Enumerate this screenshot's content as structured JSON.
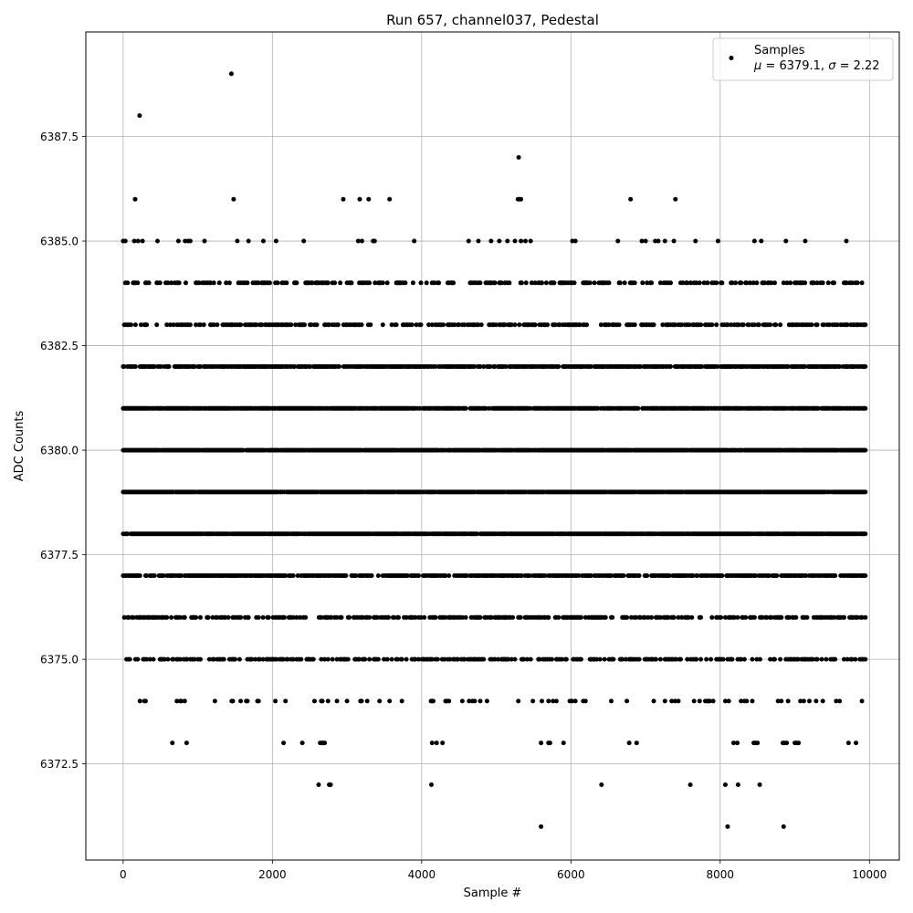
{
  "chart_data": {
    "type": "scatter",
    "title": "Run 657, channel037, Pedestal",
    "xlabel": "Sample #",
    "ylabel": "ADC Counts",
    "xlim": [
      -500,
      10400
    ],
    "ylim": [
      6370.2,
      6390.0
    ],
    "x_ticks": [
      0,
      2000,
      4000,
      6000,
      8000,
      10000
    ],
    "x_tick_labels": [
      "0",
      "2000",
      "4000",
      "6000",
      "8000",
      "10000"
    ],
    "y_ticks": [
      6372.5,
      6375.0,
      6377.5,
      6380.0,
      6382.5,
      6385.0,
      6387.5
    ],
    "y_tick_labels": [
      "6372.5",
      "6375.0",
      "6377.5",
      "6380.0",
      "6382.5",
      "6385.0",
      "6387.5"
    ],
    "grid": true,
    "legend_position": "top-right",
    "series": [
      {
        "name": "Samples",
        "color": "#000000",
        "note": "$\\mu$ = 6379.1, $\\sigma$ = 2.22",
        "x_range": [
          0,
          9950
        ],
        "levels": [
          {
            "y": 6371,
            "x": [
              5600,
              8100,
              8850
            ]
          },
          {
            "y": 6372,
            "x": [
              2620,
              2760,
              2780,
              4130,
              6410,
              7600,
              8070,
              8240,
              8530
            ]
          },
          {
            "y": 6373,
            "x": [
              660,
              850,
              2150,
              2400,
              2640,
              2660,
              2680,
              2700,
              4140,
              4200,
              4280,
              5600,
              5700,
              5720,
              5900,
              6780,
              6880,
              8180,
              8230,
              8450,
              8470,
              8500,
              8840,
              8860,
              8890,
              9000,
              9020,
              9050,
              9720,
              9820
            ]
          },
          {
            "y": 6389,
            "x": [
              1450
            ]
          },
          {
            "y": 6388,
            "x": [
              220
            ]
          },
          {
            "y": 6387,
            "x": [
              5300
            ]
          },
          {
            "y": 6386,
            "x": [
              160,
              1480,
              2950,
              3170,
              3290,
              3570,
              5290,
              5310,
              5330,
              6800,
              7400
            ]
          },
          {
            "y": 6385,
            "x": [
              0,
              30,
              150,
              200,
              260,
              460,
              740,
              830,
              870,
              900,
              1090,
              1530,
              1680,
              1880,
              2050,
              2420,
              3150,
              3200,
              3350,
              3370,
              3900,
              4630,
              4760,
              4930,
              5040,
              5150,
              5250,
              5330,
              5390,
              5460,
              6020,
              6060,
              6630,
              6950,
              7000,
              7130,
              7170,
              7260,
              7380,
              7670,
              7970,
              8460,
              8550,
              8880,
              9140,
              9690
            ]
          }
        ],
        "dense_levels": [
          {
            "y": 6374,
            "density": 0.12
          },
          {
            "y": 6375,
            "density": 0.42
          },
          {
            "y": 6376,
            "density": 0.5
          },
          {
            "y": 6377,
            "density": 0.72
          },
          {
            "y": 6378,
            "density": 0.95
          },
          {
            "y": 6379,
            "density": 0.97
          },
          {
            "y": 6380,
            "density": 0.95
          },
          {
            "y": 6381,
            "density": 0.85
          },
          {
            "y": 6382,
            "density": 0.75
          },
          {
            "y": 6383,
            "density": 0.5
          },
          {
            "y": 6384,
            "density": 0.33
          }
        ]
      }
    ]
  }
}
